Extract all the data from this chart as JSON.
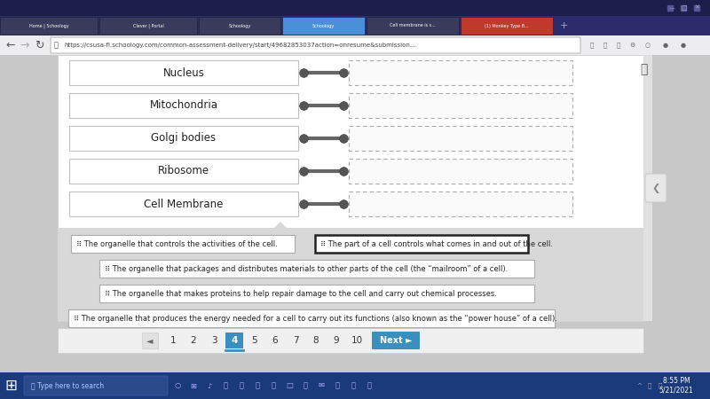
{
  "organelles": [
    "Nucleus",
    "Mitochondria",
    "Golgi bodies",
    "Ribosome",
    "Cell Membrane"
  ],
  "functions": [
    "The organelle that controls the activities of the cell.",
    "The part of a cell controls what comes in and out of the cell.",
    "The organelle that packages and distributes materials to other parts of the cell (the “mailroom” of a cell).",
    "The organelle that makes proteins to help repair damage to the cell and carry out chemical processes.",
    "The organelle that produces the energy needed for a cell to carry out its functions (also known as the “power house” of a cell)."
  ],
  "active_page": 4,
  "pages": [
    "1",
    "2",
    "3",
    "4",
    "5",
    "6",
    "7",
    "8",
    "9",
    "10"
  ],
  "tab_labels": [
    "Home | Schoology",
    "Clever | Portal",
    "Schoology",
    "Schoology",
    "Cell membrane is s...",
    "(1) Monkey Type B..."
  ],
  "tab_colors": [
    "#3a3a5c",
    "#3a3a5c",
    "#3a3a5c",
    "#4a90d9",
    "#3a3a5c",
    "#c0392b"
  ],
  "tab_bar_bg": "#2c2c6c",
  "addr_bar_bg": "#f5f5f5",
  "addr_text": "https://csusa-fl.schoology.com/common-assessment-delivery/start/49682853037action=onresume&submission...",
  "page_outer_bg": "#c8c8c8",
  "content_bg": "#ffffff",
  "gray_section_bg": "#d8d8d8",
  "organelle_box_bg": "#ffffff",
  "organelle_box_border": "#c0c0c0",
  "dashed_box_color": "#aaaaaa",
  "connector_color": "#666666",
  "fn_box_bg": "#ffffff",
  "fn_box_border": "#aaaaaa",
  "fn_selected_border": "#222222",
  "page_btn_active_bg": "#3a8fbc",
  "page_btn_active_fg": "#ffffff",
  "next_btn_bg": "#3a8fbc",
  "taskbar_bg": "#1a3a7c",
  "taskbar_text": "#ffffff",
  "win_title_bg": "#1e1e4a",
  "scrollbar_bg": "#e0e0e0",
  "expand_icon_color": "#555555",
  "collapse_arrow_color": "#888888"
}
